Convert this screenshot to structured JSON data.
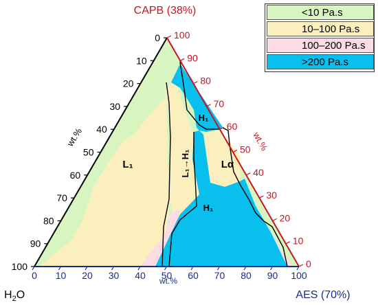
{
  "chart_data": {
    "type": "ternary",
    "apex_labels": {
      "top": "CAPB (38%)",
      "bottom_left": "H₂O",
      "bottom_right": "AES (70%)"
    },
    "axis_unit_labels": {
      "left": "wt.%",
      "right": "wt.%",
      "bottom": "wt.%"
    },
    "left_axis_ticks": [
      "0",
      "10",
      "20",
      "30",
      "40",
      "50",
      "60",
      "70",
      "80",
      "90",
      "100"
    ],
    "right_axis_ticks": [
      "100",
      "90",
      "80",
      "70",
      "60",
      "50",
      "40",
      "30",
      "20",
      "10",
      "0"
    ],
    "bottom_axis_ticks": [
      "0",
      "10",
      "20",
      "30",
      "40",
      "50",
      "60",
      "70",
      "80",
      "90",
      "100"
    ],
    "colors": {
      "green": "#d8f5c1",
      "yellow": "#fbefbe",
      "pink": "#fadbe6",
      "cyan": "#08bfee",
      "left_axis": "#000000",
      "right_axis": "#c8141e",
      "bottom_axis": "#1a2a8c"
    },
    "legend": [
      {
        "label": "<10 Pa.s",
        "color": "#d8f5c1"
      },
      {
        "label": "10–100 Pa.s",
        "color": "#fbefbe"
      },
      {
        "label": "100–200 Pa.s",
        "color": "#fadbe6"
      },
      {
        "label": ">200 Pa.s",
        "color": "#08bfee"
      }
    ],
    "phase_labels": [
      "L₁",
      "L₁→H₁",
      "H₁",
      "Lα",
      "H₁"
    ]
  }
}
